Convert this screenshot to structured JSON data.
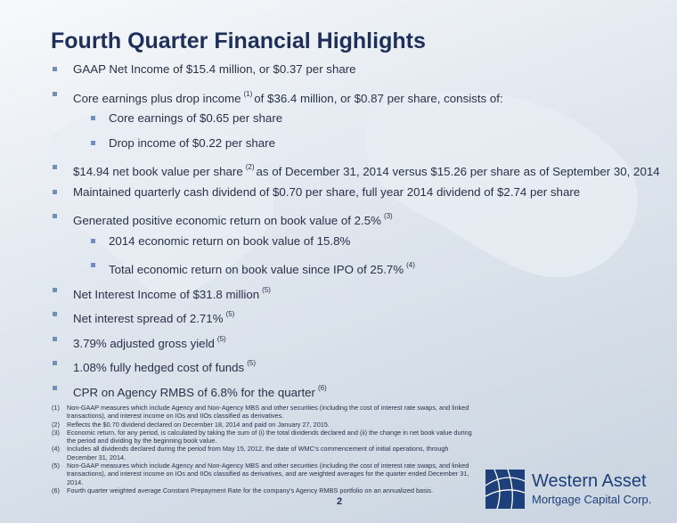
{
  "header": {
    "title": "Fourth Quarter Financial Highlights"
  },
  "bullets": [
    {
      "level": 1,
      "text": "GAAP Net Income of $15.4 million, or $0.37 per share"
    },
    {
      "level": 1,
      "text": "Core earnings plus drop income",
      "sup": "(1)",
      "after": "of $36.4 million, or $0.87 per share, consists of:"
    },
    {
      "level": 2,
      "text": "Core earnings of $0.65 per share"
    },
    {
      "level": 2,
      "text": "Drop income of $0.22 per share"
    },
    {
      "level": 1,
      "text": "$14.94 net book value per share",
      "sup": "(2)",
      "after": "as of December 31, 2014 versus $15.26 per share as of September 30, 2014"
    },
    {
      "level": 1,
      "text": "Maintained quarterly cash dividend of $0.70 per share, full year 2014 dividend of $2.74 per share"
    },
    {
      "level": 1,
      "text": "Generated positive economic return on book value of 2.5%",
      "sup": "(3)"
    },
    {
      "level": 2,
      "text": "2014 economic return on book value of 15.8%"
    },
    {
      "level": 2,
      "text": "Total economic return on book value since IPO of 25.7%",
      "sup": "(4)"
    },
    {
      "level": 1,
      "text": "Net Interest Income of $31.8 million",
      "sup": "(5)"
    },
    {
      "level": 1,
      "text": "Net interest spread of  2.71%",
      "sup": "(5)"
    },
    {
      "level": 1,
      "text": "3.79% adjusted gross yield",
      "sup": "(5)"
    },
    {
      "level": 1,
      "text": "1.08% fully hedged cost of funds",
      "sup": "(5)"
    },
    {
      "level": 1,
      "text": "CPR on Agency RMBS of 6.8% for the quarter",
      "sup": "(6)"
    }
  ],
  "footnotes": [
    {
      "num": "(1)",
      "text": "Non-GAAP measures which include Agency and Non-Agency MBS and other securities (including the cost of interest rate swaps, and linked transactions), and interest income on IOs and IIOs classified as derivatives."
    },
    {
      "num": "(2)",
      "text": "Reflects the $0.70 dividend declared on December 18, 2014 and paid on January 27, 2015."
    },
    {
      "num": "(3)",
      "text": "Economic return, for any period, is calculated by taking the sum of (i) the total dividends declared and (ii) the change in net book value during the period and dividing by the beginning book value."
    },
    {
      "num": "(4)",
      "text": "Includes all dividends declared during the period from  May 15, 2012, the date of  WMC's commencement of initial operations, through December 31, 2014."
    },
    {
      "num": "(5)",
      "text": "Non-GAAP measures which include Agency and Non-Agency MBS and other securities (including the cost of interest rate swaps, and linked transactions), and interest income on IOs and IIOs classified as derivatives, and are weighted averages for the quarter ended December 31, 2014."
    },
    {
      "num": "(6)",
      "text": "Fourth quarter weighted average Constant Prepayment Rate for the company's Agency RMBS portfolio on an annualized basis."
    }
  ],
  "page_number": "2",
  "logo": {
    "line1": "Western Asset",
    "line2": "Mortgage Capital Corp."
  }
}
